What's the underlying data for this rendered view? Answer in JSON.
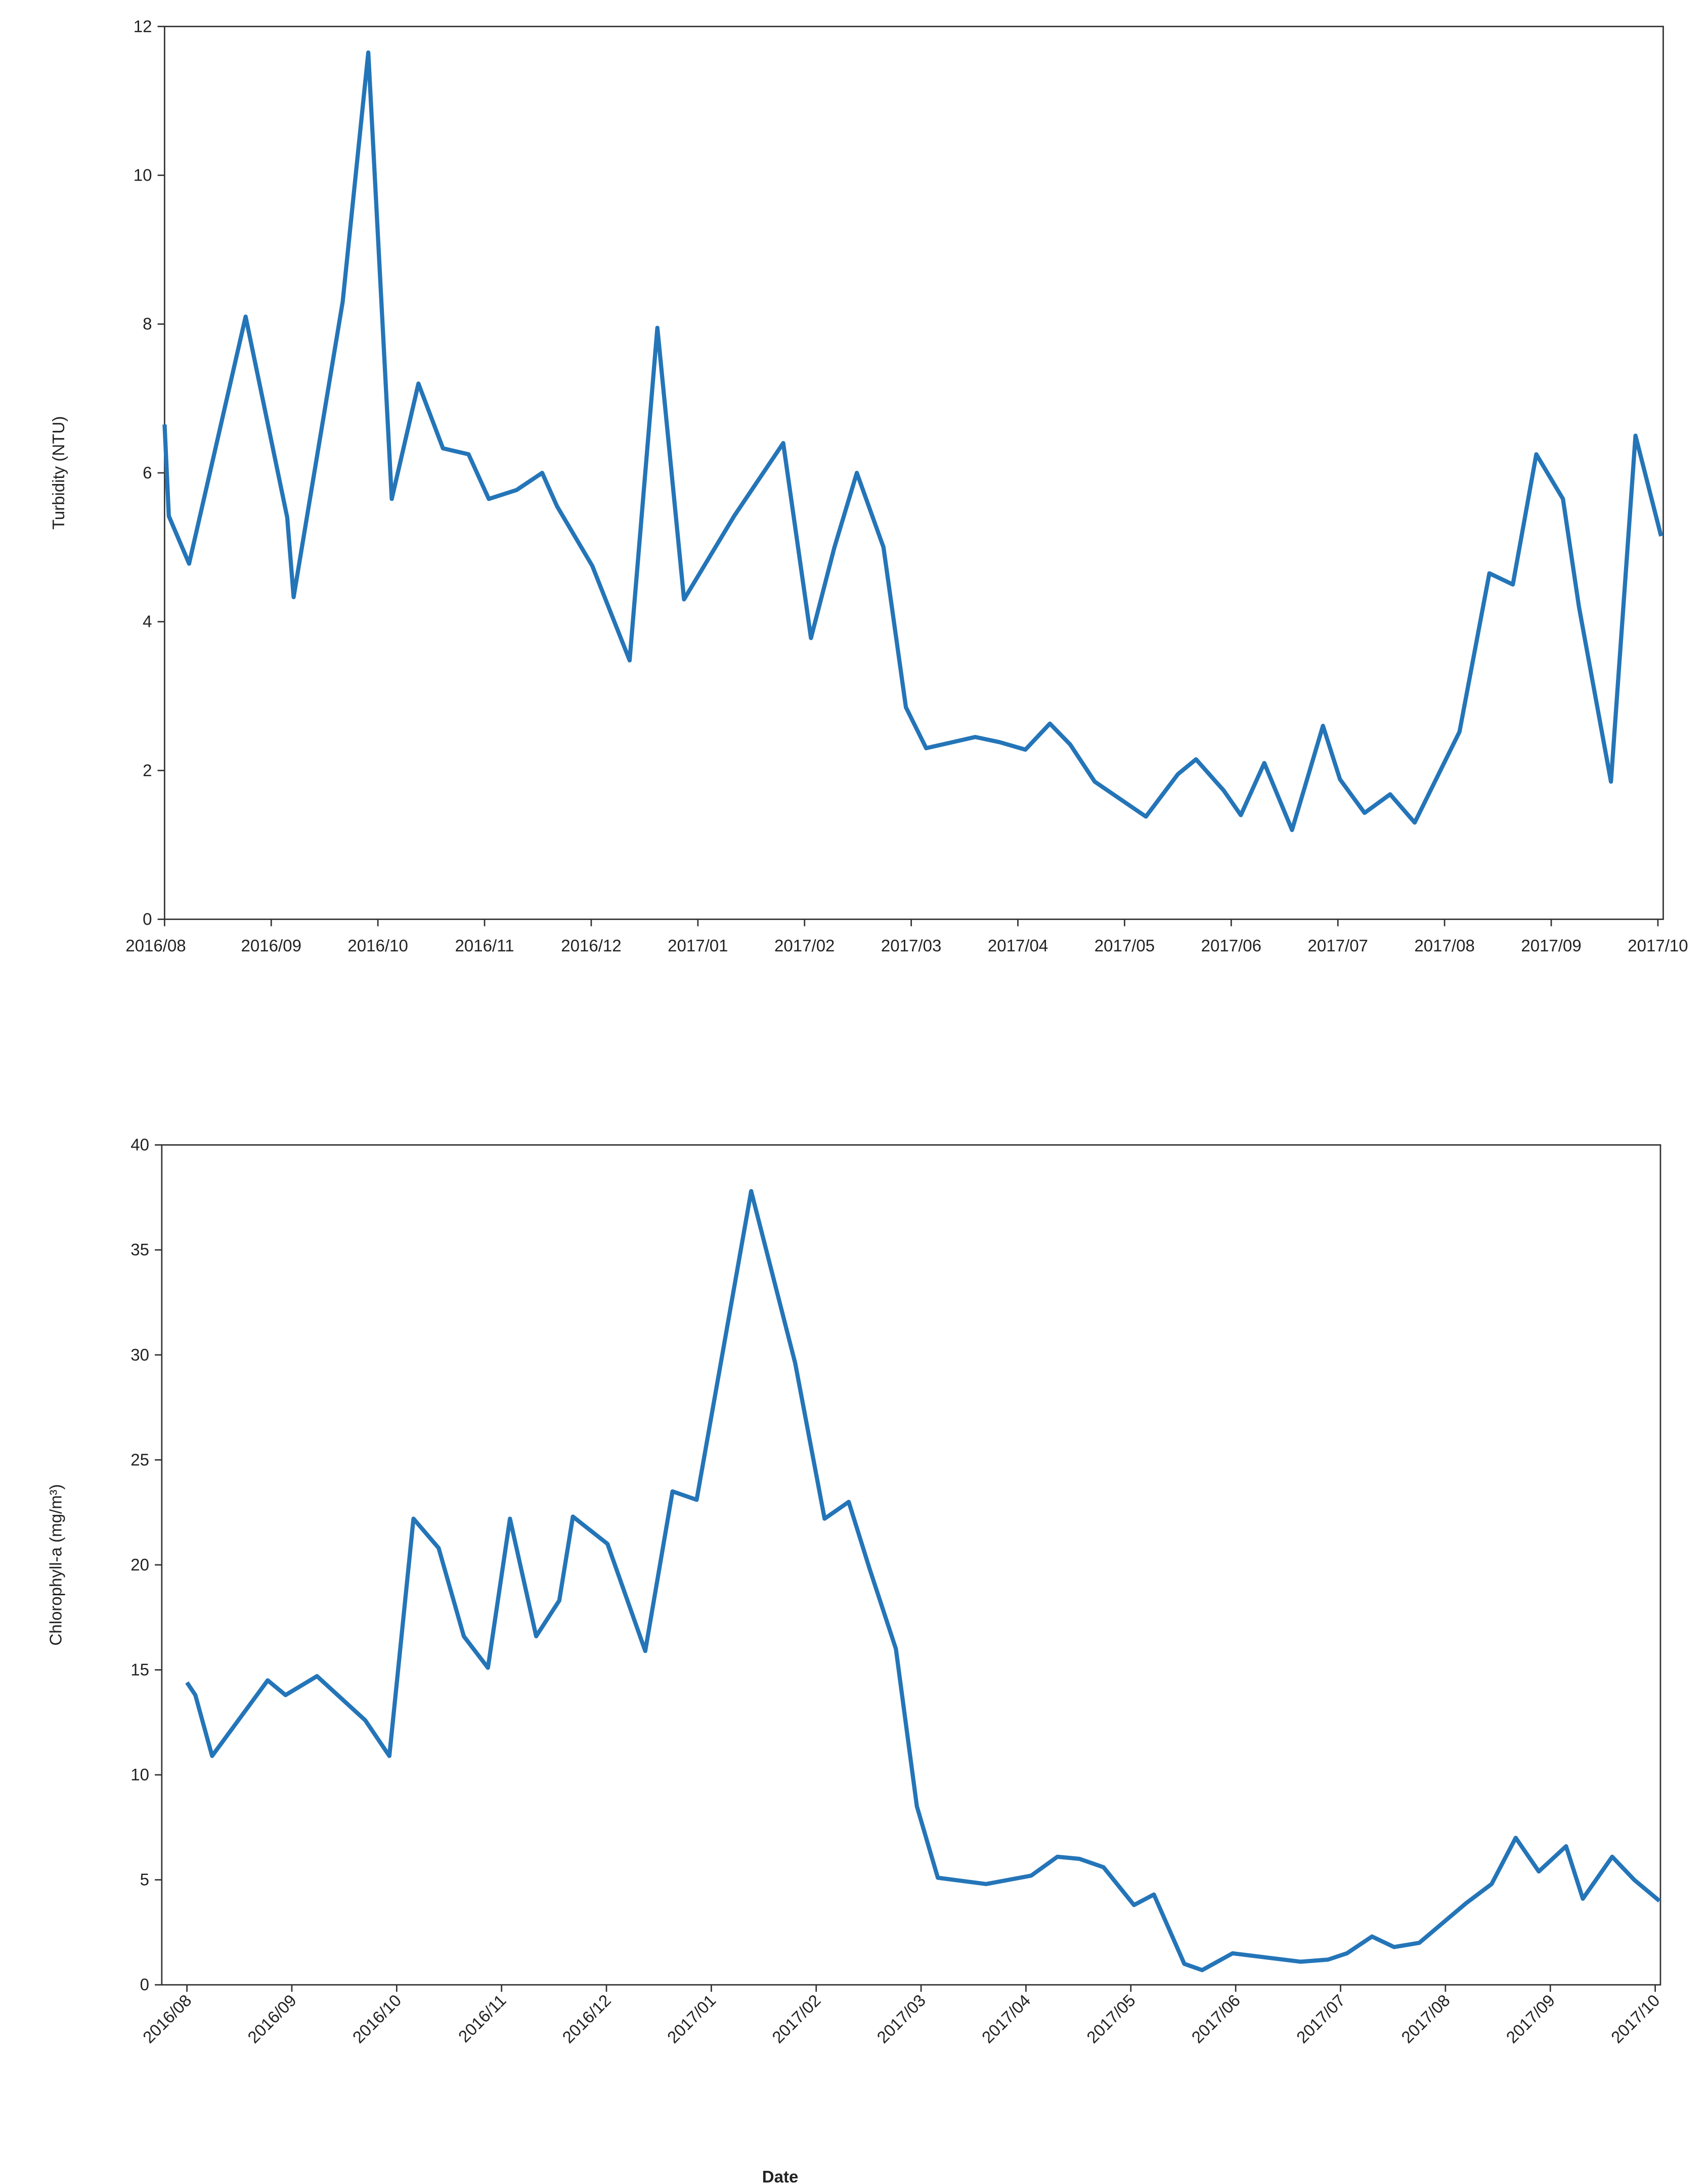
{
  "chart_data": [
    {
      "type": "line",
      "y_label": "Turbidity (NTU)",
      "xlim": [
        0,
        14.05
      ],
      "ylim": [
        0,
        12
      ],
      "xticks": [
        {
          "value": 0,
          "label": "2016/08"
        },
        {
          "value": 1,
          "label": "2016/09"
        },
        {
          "value": 2,
          "label": "2016/10"
        },
        {
          "value": 3,
          "label": "2016/11"
        },
        {
          "value": 4,
          "label": "2016/12"
        },
        {
          "value": 5,
          "label": "2017/01"
        },
        {
          "value": 6,
          "label": "2017/02"
        },
        {
          "value": 7,
          "label": "2017/03"
        },
        {
          "value": 8,
          "label": "2017/04"
        },
        {
          "value": 9,
          "label": "2017/05"
        },
        {
          "value": 10,
          "label": "2017/06"
        },
        {
          "value": 11,
          "label": "2017/07"
        },
        {
          "value": 12,
          "label": "2017/08"
        },
        {
          "value": 13,
          "label": "2017/09"
        },
        {
          "value": 14,
          "label": "2017/10"
        }
      ],
      "yticks": [
        0,
        2,
        4,
        6,
        8,
        10,
        12
      ],
      "x": [
        0,
        0.04,
        0.23,
        0.76,
        1.15,
        1.21,
        1.67,
        1.91,
        2.13,
        2.38,
        2.61,
        2.85,
        3.04,
        3.3,
        3.54,
        3.68,
        4.01,
        4.36,
        4.62,
        4.87,
        5.34,
        5.8,
        6.06,
        6.28,
        6.49,
        6.74,
        6.95,
        7.14,
        7.6,
        7.83,
        8.07,
        8.3,
        8.49,
        8.72,
        9.2,
        9.5,
        9.67,
        9.93,
        10.09,
        10.31,
        10.57,
        10.86,
        11.02,
        11.25,
        11.49,
        11.72,
        12.14,
        12.42,
        12.64,
        12.86,
        13.11,
        13.26,
        13.56,
        13.79,
        14.03
      ],
      "series": [
        {
          "color": "#2475b8",
          "values": [
            6.65,
            5.42,
            4.78,
            8.1,
            5.4,
            4.33,
            8.3,
            11.65,
            5.65,
            7.2,
            6.33,
            6.25,
            5.65,
            5.77,
            6.0,
            5.55,
            4.75,
            3.48,
            7.95,
            4.3,
            5.42,
            6.4,
            3.78,
            5.0,
            6.0,
            5.0,
            2.85,
            2.3,
            2.45,
            2.38,
            2.28,
            2.63,
            2.35,
            1.85,
            1.38,
            1.95,
            2.15,
            1.73,
            1.4,
            2.1,
            1.2,
            2.6,
            1.88,
            1.43,
            1.68,
            1.3,
            2.52,
            4.65,
            4.5,
            6.25,
            5.65,
            4.2,
            1.85,
            6.5,
            5.15
          ]
        }
      ]
    },
    {
      "type": "line",
      "y_label": "Chlorophyll-a (mg/m³)",
      "x_label": "Date",
      "xlim": [
        -0.24,
        14.05
      ],
      "ylim": [
        0,
        40
      ],
      "xticks": [
        {
          "value": 0,
          "label": "2016/08"
        },
        {
          "value": 1,
          "label": "2016/09"
        },
        {
          "value": 2,
          "label": "2016/10"
        },
        {
          "value": 3,
          "label": "2016/11"
        },
        {
          "value": 4,
          "label": "2016/12"
        },
        {
          "value": 5,
          "label": "2017/01"
        },
        {
          "value": 6,
          "label": "2017/02"
        },
        {
          "value": 7,
          "label": "2017/03"
        },
        {
          "value": 8,
          "label": "2017/04"
        },
        {
          "value": 9,
          "label": "2017/05"
        },
        {
          "value": 10,
          "label": "2017/06"
        },
        {
          "value": 11,
          "label": "2017/07"
        },
        {
          "value": 12,
          "label": "2017/08"
        },
        {
          "value": 13,
          "label": "2017/09"
        },
        {
          "value": 14,
          "label": "2017/10"
        }
      ],
      "yticks": [
        0,
        5,
        10,
        15,
        20,
        25,
        30,
        35,
        40
      ],
      "x": [
        0,
        0.08,
        0.24,
        0.77,
        0.94,
        1.24,
        1.7,
        1.93,
        2.16,
        2.4,
        2.64,
        2.87,
        3.08,
        3.33,
        3.55,
        3.68,
        4.01,
        4.37,
        4.63,
        4.86,
        5.38,
        5.8,
        6.08,
        6.31,
        6.51,
        6.76,
        6.96,
        7.16,
        7.62,
        8.05,
        8.3,
        8.51,
        8.74,
        9.03,
        9.22,
        9.51,
        9.68,
        9.97,
        10.62,
        10.88,
        11.06,
        11.3,
        11.51,
        11.75,
        12.2,
        12.44,
        12.67,
        12.89,
        13.15,
        13.31,
        13.59,
        13.8,
        14.04
      ],
      "series": [
        {
          "color": "#2475b8",
          "values": [
            14.4,
            13.8,
            10.9,
            14.5,
            13.8,
            14.7,
            12.6,
            10.9,
            22.2,
            20.8,
            16.6,
            15.1,
            22.2,
            16.6,
            18.3,
            22.3,
            21.0,
            15.9,
            23.5,
            23.1,
            37.8,
            29.6,
            22.2,
            23.0,
            19.8,
            16.0,
            8.5,
            5.1,
            4.8,
            5.2,
            6.1,
            6.0,
            5.6,
            3.8,
            4.3,
            1.0,
            0.7,
            1.5,
            1.1,
            1.2,
            1.5,
            2.3,
            1.8,
            2.0,
            3.9,
            4.8,
            7.0,
            5.4,
            6.6,
            4.1,
            6.1,
            5.0,
            4.0
          ]
        }
      ]
    }
  ]
}
